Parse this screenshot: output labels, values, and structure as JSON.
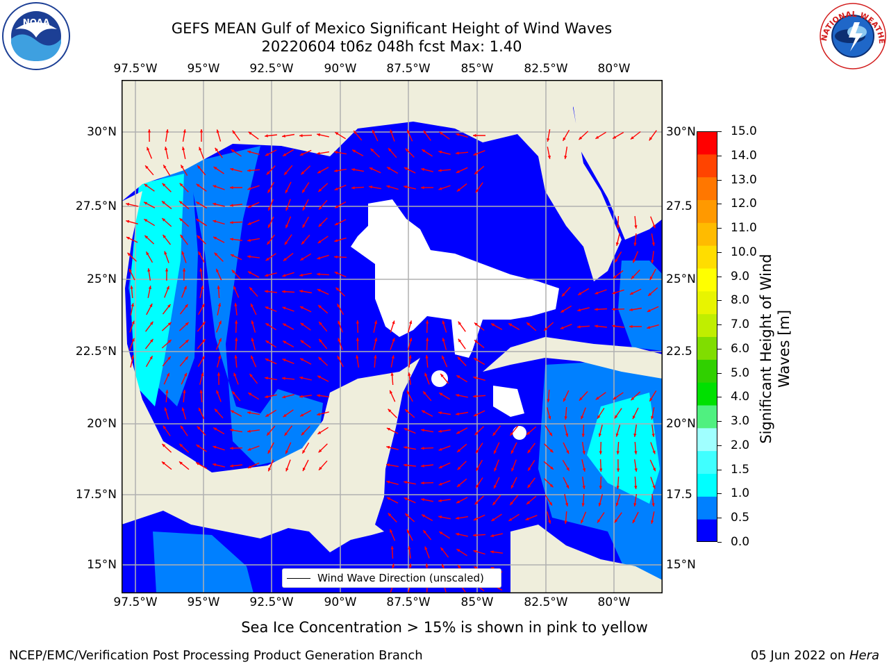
{
  "header": {
    "title_line1": "GEFS MEAN Gulf of Mexico Significant Height of Wind Waves",
    "title_line2": "20220604 t06z 048h fcst   Max: 1.40"
  },
  "logos": {
    "left": {
      "name": "NOAA",
      "ring_text": "NATIONAL OCEANIC AND ATMOSPHERIC ADMINISTRATION · U.S. DEPARTMENT OF COMMERCE"
    },
    "right": {
      "name": "NATIONAL WEATHER SERVICE"
    }
  },
  "map": {
    "lon_labels": [
      "97.5°W",
      "95°W",
      "92.5°W",
      "90°W",
      "87.5°W",
      "85°W",
      "82.5°W",
      "80°W"
    ],
    "lat_labels_left": [
      "30°N",
      "27.5°N",
      "25°N",
      "22.5°N",
      "20°N",
      "17.5°N",
      "15°N"
    ],
    "lat_labels_right": [
      "30°N",
      "27.5",
      "25°N",
      "22.5",
      "20°N",
      "17.5",
      "15°N"
    ],
    "legend_text": "Wind Wave Direction (unscaled)",
    "colors": {
      "land": "#efeedc",
      "ocean_0_0p5": "#0000ff",
      "ocean_0p5_1": "#0080ff",
      "ocean_1_1p5": "#00ffff",
      "arrows": "#ff0000",
      "gridlines": "#b0b0b0"
    }
  },
  "colorbar": {
    "ticks": [
      "15.0",
      "14.0",
      "13.0",
      "12.0",
      "11.0",
      "10.0",
      "9.0",
      "8.0",
      "7.0",
      "6.0",
      "5.0",
      "4.0",
      "3.0",
      "2.0",
      "1.5",
      "1.0",
      "0.5",
      "0.0"
    ],
    "colors": [
      "#0000ff",
      "#0080ff",
      "#00ffff",
      "#40ffff",
      "#a0ffff",
      "#50f080",
      "#00e000",
      "#30d000",
      "#80dd00",
      "#c0ee00",
      "#e8f400",
      "#ffff00",
      "#ffdd00",
      "#ffbb00",
      "#ff9900",
      "#ff7700",
      "#ff4400",
      "#ff0000"
    ],
    "label": "Significant Height of Wind Waves [m]"
  },
  "footer": {
    "sea_ice_note": "Sea Ice Concentration > 15% is shown in pink to yellow",
    "left_credit": "NCEP/EMC/Verification Post Processing Product Generation Branch",
    "date_prefix": "05 Jun 2022 on ",
    "date_host": "Hera"
  }
}
